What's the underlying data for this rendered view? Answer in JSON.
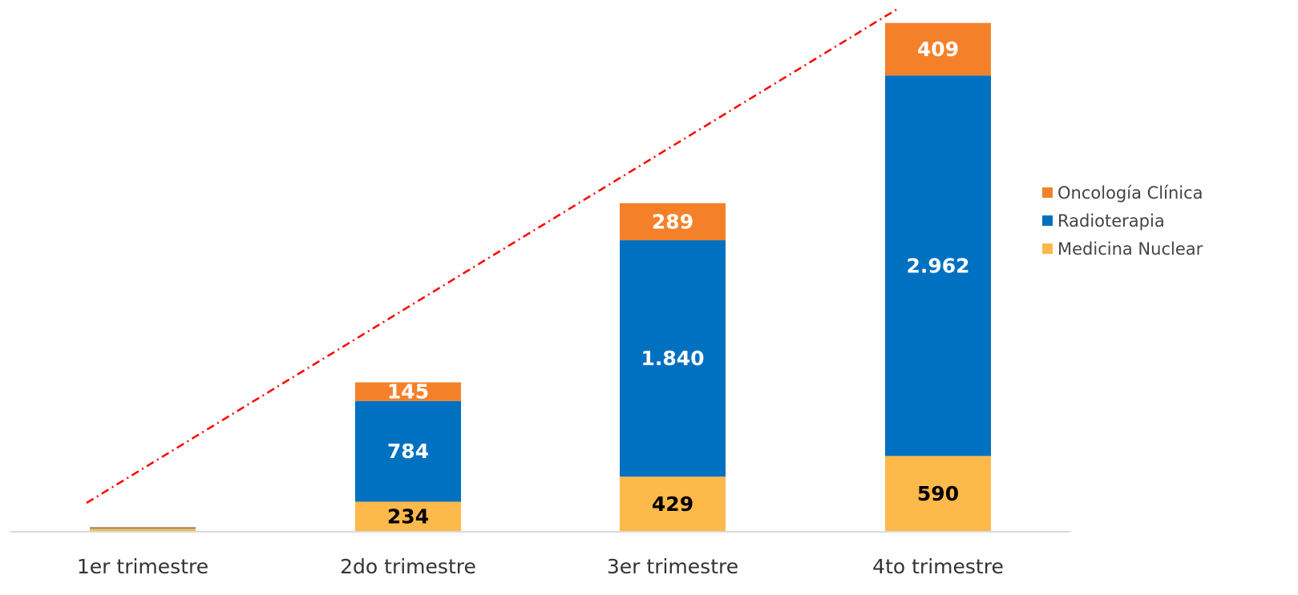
{
  "chart_data": {
    "type": "bar",
    "stacked": true,
    "categories": [
      "1er trimestre",
      "2do trimestre",
      "3er trimestre",
      "4to trimestre"
    ],
    "series": [
      {
        "name": "Medicina Nuclear",
        "color": "#FDB94A",
        "values": [
          25,
          234,
          429,
          590
        ],
        "labels": [
          "",
          "234",
          "429",
          "590"
        ],
        "label_color": "#000000"
      },
      {
        "name": "Radioterapia",
        "color": "#0070C0",
        "values": [
          5,
          784,
          1840,
          2962
        ],
        "labels": [
          "",
          "784",
          "1.840",
          "2.962"
        ],
        "label_color": "#ffffff"
      },
      {
        "name": "Oncología Clínica",
        "color": "#F4812A",
        "values": [
          6,
          145,
          289,
          409
        ],
        "labels": [
          "",
          "145",
          "289",
          "409"
        ],
        "label_color": "#ffffff"
      }
    ],
    "trendline": {
      "style": "dash-dot",
      "color": "#FF0000"
    },
    "legend_position": "right",
    "grid": false
  }
}
